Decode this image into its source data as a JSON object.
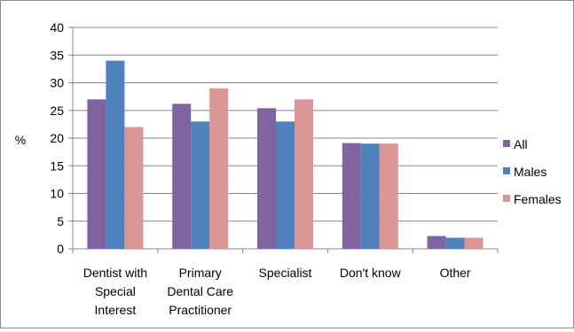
{
  "chart_data": {
    "type": "bar",
    "title": "",
    "xlabel": "",
    "ylabel": "%",
    "ylim": [
      0,
      40
    ],
    "yticks": [
      0,
      5,
      10,
      15,
      20,
      25,
      30,
      35,
      40
    ],
    "grid": true,
    "legend_position": "right",
    "categories": [
      [
        "Dentist with",
        "Special",
        "Interest"
      ],
      [
        "Primary",
        "Dental Care",
        "Practitioner"
      ],
      [
        "Specialist"
      ],
      [
        "Don't know"
      ],
      [
        "Other"
      ]
    ],
    "series": [
      {
        "name": "All",
        "color": "#8064a2",
        "values": [
          27,
          26.2,
          25.4,
          19.1,
          2.3
        ]
      },
      {
        "name": "Males",
        "color": "#4f81bd",
        "values": [
          34,
          23,
          23,
          19,
          2
        ]
      },
      {
        "name": "Females",
        "color": "#d99694",
        "values": [
          22,
          29,
          27,
          19,
          2
        ]
      }
    ]
  }
}
